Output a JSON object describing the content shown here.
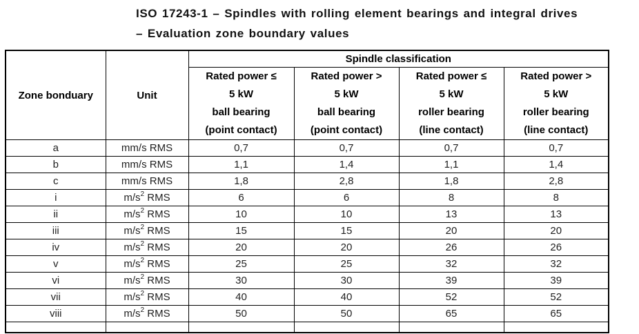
{
  "title": {
    "line1": "ISO 17243-1 – Spindles with rolling element bearings and integral drives",
    "line2": "– Evaluation zone boundary values"
  },
  "table": {
    "corner_header": "Zone bonduary",
    "unit_header": "Unit",
    "group_header": "Spindle classification",
    "column_headers": [
      "Rated power ≤\n5 kW\nball bearing\n(point contact)",
      "Rated power >\n5 kW\nball bearing\n(point contact)",
      "Rated power ≤\n5 kW\nroller bearing\n(line contact)",
      "Rated power >\n5 kW\nroller bearing\n(line contact)"
    ],
    "rows": [
      {
        "zone": "a",
        "unit_base": "mm/s",
        "unit_sup": "",
        "unit_suffix": "RMS",
        "values": [
          "0,7",
          "0,7",
          "0,7",
          "0,7"
        ]
      },
      {
        "zone": "b",
        "unit_base": "mm/s",
        "unit_sup": "",
        "unit_suffix": "RMS",
        "values": [
          "1,1",
          "1,4",
          "1,1",
          "1,4"
        ]
      },
      {
        "zone": "c",
        "unit_base": "mm/s",
        "unit_sup": "",
        "unit_suffix": "RMS",
        "values": [
          "1,8",
          "2,8",
          "1,8",
          "2,8"
        ]
      },
      {
        "zone": "i",
        "unit_base": "m/s",
        "unit_sup": "2",
        "unit_suffix": "RMS",
        "values": [
          "6",
          "6",
          "8",
          "8"
        ]
      },
      {
        "zone": "ii",
        "unit_base": "m/s",
        "unit_sup": "2",
        "unit_suffix": "RMS",
        "values": [
          "10",
          "10",
          "13",
          "13"
        ]
      },
      {
        "zone": "iii",
        "unit_base": "m/s",
        "unit_sup": "2",
        "unit_suffix": "RMS",
        "values": [
          "15",
          "15",
          "20",
          "20"
        ]
      },
      {
        "zone": "iv",
        "unit_base": "m/s",
        "unit_sup": "2",
        "unit_suffix": "RMS",
        "values": [
          "20",
          "20",
          "26",
          "26"
        ]
      },
      {
        "zone": "v",
        "unit_base": "m/s",
        "unit_sup": "2",
        "unit_suffix": "RMS",
        "values": [
          "25",
          "25",
          "32",
          "32"
        ]
      },
      {
        "zone": "vi",
        "unit_base": "m/s",
        "unit_sup": "2",
        "unit_suffix": "RMS",
        "values": [
          "30",
          "30",
          "39",
          "39"
        ]
      },
      {
        "zone": "vii",
        "unit_base": "m/s",
        "unit_sup": "2",
        "unit_suffix": "RMS",
        "values": [
          "40",
          "40",
          "52",
          "52"
        ]
      },
      {
        "zone": "viii",
        "unit_base": "m/s",
        "unit_sup": "2",
        "unit_suffix": "RMS",
        "values": [
          "50",
          "50",
          "65",
          "65"
        ]
      }
    ]
  }
}
